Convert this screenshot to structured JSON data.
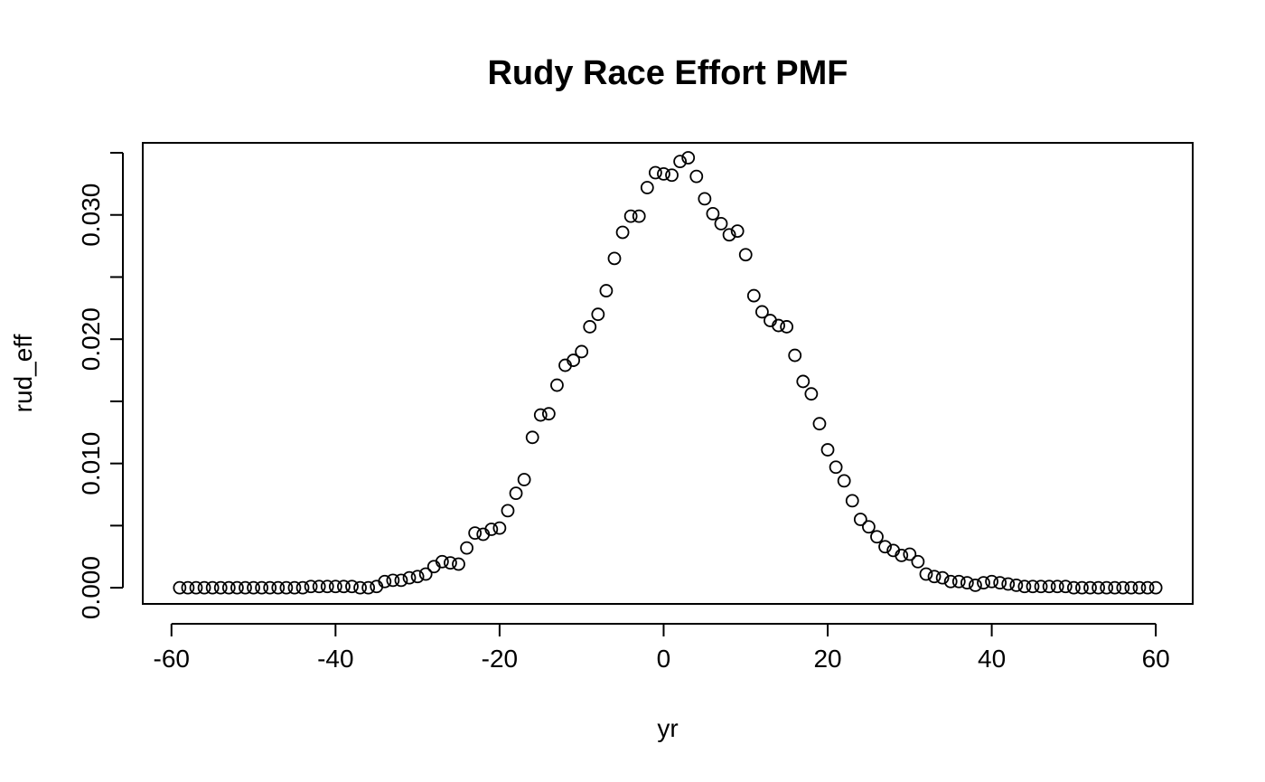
{
  "chart_data": {
    "type": "scatter",
    "title": "Rudy Race Effort PMF",
    "xlabel": "yr",
    "ylabel": "rud_eff",
    "xlim": [
      -63.5,
      64.5
    ],
    "ylim": [
      -0.0013,
      0.0358
    ],
    "x_ticks": [
      -60,
      -40,
      -20,
      0,
      20,
      40,
      60
    ],
    "x_tick_labels": [
      "-60",
      "-40",
      "-20",
      "0",
      "20",
      "40",
      "60"
    ],
    "y_ticks": [
      0.0,
      0.005,
      0.01,
      0.015,
      0.02,
      0.025,
      0.03,
      0.035
    ],
    "y_tick_labels": [
      "0.000",
      "",
      "0.010",
      "",
      "0.020",
      "",
      "0.030",
      ""
    ],
    "grid": false,
    "legend": "none",
    "marker": "open-circle",
    "colors": {
      "marker": "#000000",
      "axes": "#000000",
      "background": "#ffffff"
    },
    "x": [
      -59,
      -58,
      -57,
      -56,
      -55,
      -54,
      -53,
      -52,
      -51,
      -50,
      -49,
      -48,
      -47,
      -46,
      -45,
      -44,
      -43,
      -42,
      -41,
      -40,
      -39,
      -38,
      -37,
      -36,
      -35,
      -34,
      -33,
      -32,
      -31,
      -30,
      -29,
      -28,
      -27,
      -26,
      -25,
      -24,
      -23,
      -22,
      -21,
      -20,
      -19,
      -18,
      -17,
      -16,
      -15,
      -14,
      -13,
      -12,
      -11,
      -10,
      -9,
      -8,
      -7,
      -6,
      -5,
      -4,
      -3,
      -2,
      -1,
      0,
      1,
      2,
      3,
      4,
      5,
      6,
      7,
      8,
      9,
      10,
      11,
      12,
      13,
      14,
      15,
      16,
      17,
      18,
      19,
      20,
      21,
      22,
      23,
      24,
      25,
      26,
      27,
      28,
      29,
      30,
      31,
      32,
      33,
      34,
      35,
      36,
      37,
      38,
      39,
      40,
      41,
      42,
      43,
      44,
      45,
      46,
      47,
      48,
      49,
      50,
      51,
      52,
      53,
      54,
      55,
      56,
      57,
      58,
      59,
      60
    ],
    "y": [
      0.0,
      0.0,
      0.0,
      0.0,
      0.0,
      0.0,
      0.0,
      0.0,
      0.0,
      0.0,
      0.0,
      0.0,
      0.0,
      0.0,
      0.0,
      0.0,
      0.0001,
      0.0001,
      0.0001,
      0.0001,
      0.0001,
      0.0001,
      0.0,
      0.0,
      0.0001,
      0.0005,
      0.0006,
      0.0006,
      0.0008,
      0.0009,
      0.0011,
      0.0017,
      0.0021,
      0.002,
      0.0019,
      0.0032,
      0.0044,
      0.0043,
      0.0047,
      0.0048,
      0.0062,
      0.0076,
      0.0087,
      0.0121,
      0.0139,
      0.014,
      0.0163,
      0.0179,
      0.0183,
      0.019,
      0.021,
      0.022,
      0.0239,
      0.0265,
      0.0286,
      0.0299,
      0.0299,
      0.0322,
      0.0334,
      0.0333,
      0.0332,
      0.0343,
      0.0346,
      0.0331,
      0.0313,
      0.0301,
      0.0293,
      0.0284,
      0.0287,
      0.0268,
      0.0235,
      0.0222,
      0.0215,
      0.0211,
      0.021,
      0.0187,
      0.0166,
      0.0156,
      0.0132,
      0.0111,
      0.0097,
      0.0086,
      0.007,
      0.0055,
      0.0049,
      0.0041,
      0.0033,
      0.003,
      0.0026,
      0.0027,
      0.0021,
      0.0011,
      0.0009,
      0.0008,
      0.0005,
      0.0005,
      0.0004,
      0.0002,
      0.0004,
      0.0005,
      0.0004,
      0.0003,
      0.0002,
      0.0001,
      0.0001,
      0.0001,
      0.0001,
      0.0001,
      0.0001,
      0.0,
      0.0,
      0.0,
      0.0,
      0.0,
      0.0,
      0.0,
      0.0,
      0.0,
      0.0,
      0.0
    ]
  }
}
